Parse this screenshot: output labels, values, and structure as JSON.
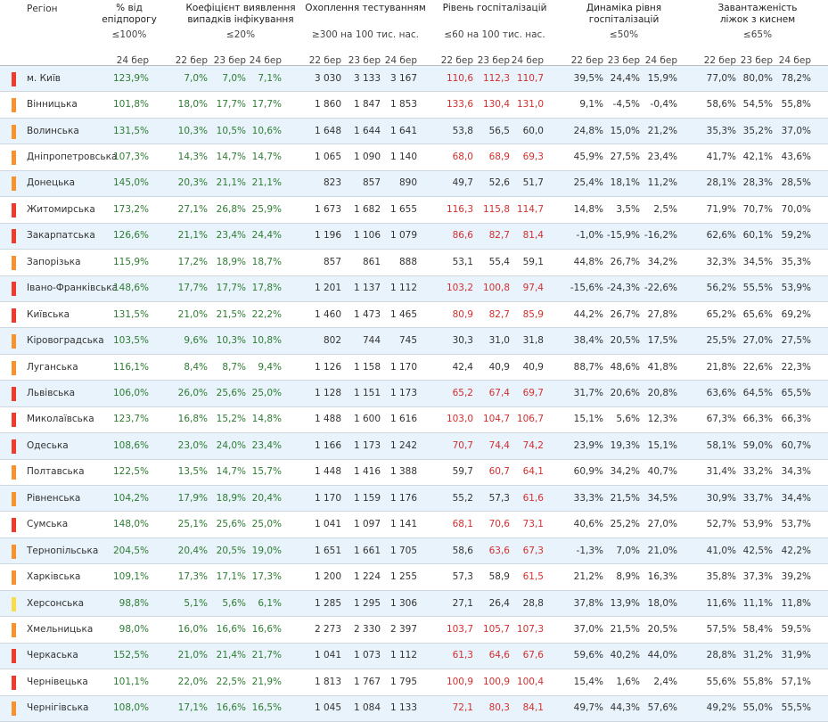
{
  "header": {
    "region": "Регіон",
    "groups": [
      {
        "title": "% від епідпорогу",
        "threshold": "≤100%",
        "dates": [
          "24 бер"
        ]
      },
      {
        "title": "Коефіцієнт виявлення випадків інфікування",
        "threshold": "≤20%",
        "dates": [
          "22 бер",
          "23 бер",
          "24 бер"
        ]
      },
      {
        "title": "Охоплення тестуванням",
        "threshold": "≥300 на 100 тис. нас.",
        "dates": [
          "22 бер",
          "23 бер",
          "24 бер"
        ]
      },
      {
        "title": "Рівень госпіталізацій",
        "threshold": "≤60 на 100 тис. нас.",
        "dates": [
          "22 бер",
          "23 бер",
          "24 бер"
        ]
      },
      {
        "title": "Динаміка рівня госпіталізацій",
        "threshold": "≤50%",
        "dates": [
          "22 бер",
          "23 бер",
          "24 бер"
        ]
      },
      {
        "title": "Завантаженість ліжок з киснем",
        "threshold": "≤65%",
        "dates": [
          "22 бер",
          "23 бер",
          "24 бер"
        ]
      }
    ]
  },
  "rows": [
    {
      "region": "м. Київ",
      "marker": "#f03a2e",
      "cells": [
        "123,9%",
        "7,0%",
        "7,0%",
        "7,1%",
        "3 030",
        "3 133",
        "3 167",
        "110,6",
        "112,3",
        "110,7",
        "39,5%",
        "24,4%",
        "15,9%",
        "77,0%",
        "80,0%",
        "78,2%"
      ],
      "hospitalization_colors": [
        "#d32f2f",
        "#d32f2f",
        "#d32f2f"
      ]
    },
    {
      "region": "Вінницька",
      "marker": "#f7922f",
      "cells": [
        "101,8%",
        "18,0%",
        "17,7%",
        "17,7%",
        "1 860",
        "1 847",
        "1 853",
        "133,6",
        "130,4",
        "131,0",
        "9,1%",
        "-4,5%",
        "-0,4%",
        "58,6%",
        "54,5%",
        "55,8%"
      ],
      "hospitalization_colors": [
        "#d32f2f",
        "#d32f2f",
        "#d32f2f"
      ]
    },
    {
      "region": "Волинська",
      "marker": "#f7922f",
      "cells": [
        "131,5%",
        "10,3%",
        "10,5%",
        "10,6%",
        "1 648",
        "1 644",
        "1 641",
        "53,8",
        "56,5",
        "60,0",
        "24,8%",
        "15,0%",
        "21,2%",
        "35,3%",
        "35,2%",
        "37,0%"
      ],
      "hospitalization_colors": [
        "#333333",
        "#333333",
        "#333333"
      ]
    },
    {
      "region": "Дніпропетровська",
      "marker": "#f7922f",
      "cells": [
        "107,3%",
        "14,3%",
        "14,7%",
        "14,7%",
        "1 065",
        "1 090",
        "1 140",
        "68,0",
        "68,9",
        "69,3",
        "45,9%",
        "27,5%",
        "23,4%",
        "41,7%",
        "42,1%",
        "43,6%"
      ],
      "hospitalization_colors": [
        "#d32f2f",
        "#d32f2f",
        "#d32f2f"
      ]
    },
    {
      "region": "Донецька",
      "marker": "#f7922f",
      "cells": [
        "145,0%",
        "20,3%",
        "21,1%",
        "21,1%",
        "823",
        "857",
        "890",
        "49,7",
        "52,6",
        "51,7",
        "25,4%",
        "18,1%",
        "11,2%",
        "28,1%",
        "28,3%",
        "28,5%"
      ],
      "hospitalization_colors": [
        "#333333",
        "#333333",
        "#333333"
      ]
    },
    {
      "region": "Житомирська",
      "marker": "#f03a2e",
      "cells": [
        "173,2%",
        "27,1%",
        "26,8%",
        "25,9%",
        "1 673",
        "1 682",
        "1 655",
        "116,3",
        "115,8",
        "114,7",
        "14,8%",
        "3,5%",
        "2,5%",
        "71,9%",
        "70,7%",
        "70,0%"
      ],
      "hospitalization_colors": [
        "#d32f2f",
        "#d32f2f",
        "#d32f2f"
      ]
    },
    {
      "region": "Закарпатська",
      "marker": "#f03a2e",
      "cells": [
        "126,6%",
        "21,1%",
        "23,4%",
        "24,4%",
        "1 196",
        "1 106",
        "1 079",
        "86,6",
        "82,7",
        "81,4",
        "-1,0%",
        "-15,9%",
        "-16,2%",
        "62,6%",
        "60,1%",
        "59,2%"
      ],
      "hospitalization_colors": [
        "#d32f2f",
        "#d32f2f",
        "#d32f2f"
      ]
    },
    {
      "region": "Запорізька",
      "marker": "#f7922f",
      "cells": [
        "115,9%",
        "17,2%",
        "18,9%",
        "18,7%",
        "857",
        "861",
        "888",
        "53,1",
        "55,4",
        "59,1",
        "44,8%",
        "26,7%",
        "34,2%",
        "32,3%",
        "34,5%",
        "35,3%"
      ],
      "hospitalization_colors": [
        "#333333",
        "#333333",
        "#333333"
      ]
    },
    {
      "region": "Івано-Франківська",
      "marker": "#f03a2e",
      "cells": [
        "148,6%",
        "17,7%",
        "17,7%",
        "17,8%",
        "1 201",
        "1 137",
        "1 112",
        "103,2",
        "100,8",
        "97,4",
        "-15,6%",
        "-24,3%",
        "-22,6%",
        "56,2%",
        "55,5%",
        "53,9%"
      ],
      "hospitalization_colors": [
        "#d32f2f",
        "#d32f2f",
        "#d32f2f"
      ]
    },
    {
      "region": "Київська",
      "marker": "#f03a2e",
      "cells": [
        "131,5%",
        "21,0%",
        "21,5%",
        "22,2%",
        "1 460",
        "1 473",
        "1 465",
        "80,9",
        "82,7",
        "85,9",
        "44,2%",
        "26,7%",
        "27,8%",
        "65,2%",
        "65,6%",
        "69,2%"
      ],
      "hospitalization_colors": [
        "#d32f2f",
        "#d32f2f",
        "#d32f2f"
      ]
    },
    {
      "region": "Кіровоградська",
      "marker": "#f7922f",
      "cells": [
        "103,5%",
        "9,6%",
        "10,3%",
        "10,8%",
        "802",
        "744",
        "745",
        "30,3",
        "31,0",
        "31,8",
        "38,4%",
        "20,5%",
        "17,5%",
        "25,5%",
        "27,0%",
        "27,5%"
      ],
      "hospitalization_colors": [
        "#333333",
        "#333333",
        "#333333"
      ]
    },
    {
      "region": "Луганська",
      "marker": "#f7922f",
      "cells": [
        "116,1%",
        "8,4%",
        "8,7%",
        "9,4%",
        "1 126",
        "1 158",
        "1 170",
        "42,4",
        "40,9",
        "40,9",
        "88,7%",
        "48,6%",
        "41,8%",
        "21,8%",
        "22,6%",
        "22,3%"
      ],
      "hospitalization_colors": [
        "#333333",
        "#333333",
        "#333333"
      ]
    },
    {
      "region": "Львівська",
      "marker": "#f03a2e",
      "cells": [
        "106,0%",
        "26,0%",
        "25,6%",
        "25,0%",
        "1 128",
        "1 151",
        "1 173",
        "65,2",
        "67,4",
        "69,7",
        "31,7%",
        "20,6%",
        "20,8%",
        "63,6%",
        "64,5%",
        "65,5%"
      ],
      "hospitalization_colors": [
        "#d32f2f",
        "#d32f2f",
        "#d32f2f"
      ]
    },
    {
      "region": "Миколаївська",
      "marker": "#f03a2e",
      "cells": [
        "123,7%",
        "16,8%",
        "15,2%",
        "14,8%",
        "1 488",
        "1 600",
        "1 616",
        "103,0",
        "104,7",
        "106,7",
        "15,1%",
        "5,6%",
        "12,3%",
        "67,3%",
        "66,3%",
        "66,3%"
      ],
      "hospitalization_colors": [
        "#d32f2f",
        "#d32f2f",
        "#d32f2f"
      ]
    },
    {
      "region": "Одеська",
      "marker": "#f03a2e",
      "cells": [
        "108,6%",
        "23,0%",
        "24,0%",
        "23,4%",
        "1 166",
        "1 173",
        "1 242",
        "70,7",
        "74,4",
        "74,2",
        "23,9%",
        "19,3%",
        "15,1%",
        "58,1%",
        "59,0%",
        "60,7%"
      ],
      "hospitalization_colors": [
        "#d32f2f",
        "#d32f2f",
        "#d32f2f"
      ]
    },
    {
      "region": "Полтавська",
      "marker": "#f7922f",
      "cells": [
        "122,5%",
        "13,5%",
        "14,7%",
        "15,7%",
        "1 448",
        "1 416",
        "1 388",
        "59,7",
        "60,7",
        "64,1",
        "60,9%",
        "34,2%",
        "40,7%",
        "31,4%",
        "33,2%",
        "34,3%"
      ],
      "hospitalization_colors": [
        "#333333",
        "#d32f2f",
        "#d32f2f"
      ]
    },
    {
      "region": "Рівненська",
      "marker": "#f7922f",
      "cells": [
        "104,2%",
        "17,9%",
        "18,9%",
        "20,4%",
        "1 170",
        "1 159",
        "1 176",
        "55,2",
        "57,3",
        "61,6",
        "33,3%",
        "21,5%",
        "34,5%",
        "30,9%",
        "33,7%",
        "34,4%"
      ],
      "hospitalization_colors": [
        "#333333",
        "#333333",
        "#d32f2f"
      ]
    },
    {
      "region": "Сумська",
      "marker": "#f03a2e",
      "cells": [
        "148,0%",
        "25,1%",
        "25,6%",
        "25,0%",
        "1 041",
        "1 097",
        "1 141",
        "68,1",
        "70,6",
        "73,1",
        "40,6%",
        "25,2%",
        "27,0%",
        "52,7%",
        "53,9%",
        "53,7%"
      ],
      "hospitalization_colors": [
        "#d32f2f",
        "#d32f2f",
        "#d32f2f"
      ]
    },
    {
      "region": "Тернопільська",
      "marker": "#f7922f",
      "cells": [
        "204,5%",
        "20,4%",
        "20,5%",
        "19,0%",
        "1 651",
        "1 661",
        "1 705",
        "58,6",
        "63,6",
        "67,3",
        "-1,3%",
        "7,0%",
        "21,0%",
        "41,0%",
        "42,5%",
        "42,2%"
      ],
      "hospitalization_colors": [
        "#333333",
        "#d32f2f",
        "#d32f2f"
      ]
    },
    {
      "region": "Харківська",
      "marker": "#f7922f",
      "cells": [
        "109,1%",
        "17,3%",
        "17,1%",
        "17,3%",
        "1 200",
        "1 224",
        "1 255",
        "57,3",
        "58,9",
        "61,5",
        "21,2%",
        "8,9%",
        "16,3%",
        "35,8%",
        "37,3%",
        "39,2%"
      ],
      "hospitalization_colors": [
        "#333333",
        "#333333",
        "#d32f2f"
      ]
    },
    {
      "region": "Херсонська",
      "marker": "#f9dc4a",
      "cells": [
        "98,8%",
        "5,1%",
        "5,6%",
        "6,1%",
        "1 285",
        "1 295",
        "1 306",
        "27,1",
        "26,4",
        "28,8",
        "37,8%",
        "13,9%",
        "18,0%",
        "11,6%",
        "11,1%",
        "11,8%"
      ],
      "hospitalization_colors": [
        "#333333",
        "#333333",
        "#333333"
      ]
    },
    {
      "region": "Хмельницька",
      "marker": "#f7922f",
      "cells": [
        "98,0%",
        "16,0%",
        "16,6%",
        "16,6%",
        "2 273",
        "2 330",
        "2 397",
        "103,7",
        "105,7",
        "107,3",
        "37,0%",
        "21,5%",
        "20,5%",
        "57,5%",
        "58,4%",
        "59,5%"
      ],
      "hospitalization_colors": [
        "#d32f2f",
        "#d32f2f",
        "#d32f2f"
      ]
    },
    {
      "region": "Черкаська",
      "marker": "#f03a2e",
      "cells": [
        "152,5%",
        "21,0%",
        "21,4%",
        "21,7%",
        "1 041",
        "1 073",
        "1 112",
        "61,3",
        "64,6",
        "67,6",
        "59,6%",
        "40,2%",
        "44,0%",
        "28,8%",
        "31,2%",
        "31,9%"
      ],
      "hospitalization_colors": [
        "#d32f2f",
        "#d32f2f",
        "#d32f2f"
      ]
    },
    {
      "region": "Чернівецька",
      "marker": "#f03a2e",
      "cells": [
        "101,1%",
        "22,0%",
        "22,5%",
        "21,9%",
        "1 813",
        "1 767",
        "1 795",
        "100,9",
        "100,9",
        "100,4",
        "15,4%",
        "1,6%",
        "2,4%",
        "55,6%",
        "55,8%",
        "57,1%"
      ],
      "hospitalization_colors": [
        "#d32f2f",
        "#d32f2f",
        "#d32f2f"
      ]
    },
    {
      "region": "Чернігівська",
      "marker": "#f7922f",
      "cells": [
        "108,0%",
        "17,1%",
        "16,6%",
        "16,5%",
        "1 045",
        "1 084",
        "1 133",
        "72,1",
        "80,3",
        "84,1",
        "49,7%",
        "44,3%",
        "57,6%",
        "49,2%",
        "55,0%",
        "55,5%"
      ],
      "hospitalization_colors": [
        "#d32f2f",
        "#d32f2f",
        "#d32f2f"
      ]
    }
  ]
}
